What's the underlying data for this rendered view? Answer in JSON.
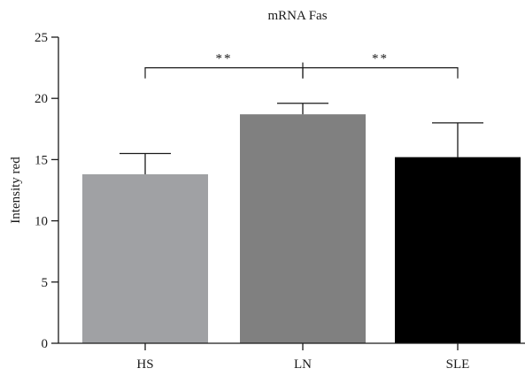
{
  "chart_data": {
    "type": "bar",
    "title": "mRNA Fas",
    "xlabel": "",
    "ylabel": "Intensity red",
    "ylim": [
      0,
      25
    ],
    "yticks": [
      "0",
      "5",
      "10",
      "15",
      "20",
      "25"
    ],
    "categories": [
      "HS",
      "LN",
      "SLE"
    ],
    "values": [
      13.8,
      18.7,
      15.2
    ],
    "errors": [
      1.7,
      0.9,
      2.8
    ],
    "colors": [
      "#a0a1a4",
      "#808080",
      "#000000"
    ],
    "significance": [
      {
        "from": "HS",
        "to": "LN",
        "label": "**"
      },
      {
        "from": "LN",
        "to": "SLE",
        "label": "**"
      }
    ],
    "grid": false,
    "legend": "none"
  }
}
